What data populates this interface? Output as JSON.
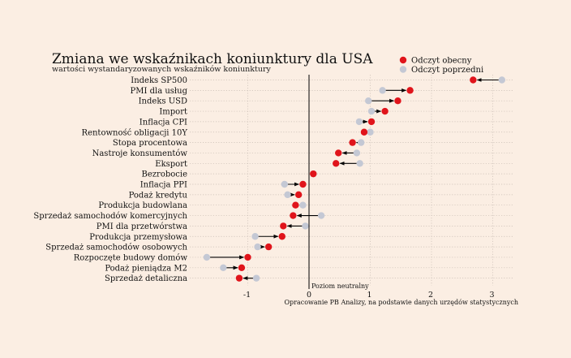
{
  "colors": {
    "background": "#fbeee3",
    "current": "#e0141b",
    "previous": "#c4c8d4",
    "arrow": "#000000",
    "grid": "#c9bdb4"
  },
  "chart_data": {
    "type": "scatter",
    "title": "Zmiana we wskaźnikach koniunktury dla USA",
    "subtitle": "wartości wystandaryzowanych wskaźników koniunktury",
    "xlim": [
      -1.75,
      3.35
    ],
    "x_ticks": [
      "-1",
      "0",
      "1",
      "2",
      "3"
    ],
    "x_tick_values": [
      -1,
      0,
      1,
      2,
      3
    ],
    "zero_label": "Poziom neutralny",
    "source": "Opracowanie PB Analizy, na podstawie danych urzędów statystycznych",
    "grid": true,
    "legend_position": "top-right",
    "series": [
      {
        "name": "Odczyt obecny",
        "color": "#e0141b"
      },
      {
        "name": "Odczyt poprzedni",
        "color": "#c4c8d4"
      }
    ],
    "categories": [
      "Indeks SP500",
      "PMI dla usług",
      "Indeks USD",
      "Import",
      "Inflacja CPI",
      "Rentowność obligacji 10Y",
      "Stopa procentowa",
      "Nastroje konsumentów",
      "Eksport",
      "Bezrobocie",
      "Inflacja PPI",
      "Podaż kredytu",
      "Produkcja budowlana",
      "Sprzedaż samochodów komercyjnych",
      "PMI dla przetwórstwa",
      "Produkcja przemysłowa",
      "Sprzedaż samochodów osobowych",
      "Rozpoczęte budowy domów",
      "Podaż pieniądza M2",
      "Sprzedaż detaliczna"
    ],
    "current": [
      2.68,
      1.65,
      1.45,
      1.24,
      1.02,
      0.9,
      0.71,
      0.48,
      0.44,
      0.07,
      -0.1,
      -0.17,
      -0.22,
      -0.26,
      -0.42,
      -0.44,
      -0.66,
      -1.0,
      -1.1,
      -1.14
    ],
    "previous": [
      3.15,
      1.2,
      0.97,
      1.02,
      0.82,
      1.0,
      0.85,
      0.78,
      0.83,
      0.07,
      -0.4,
      -0.35,
      -0.1,
      0.2,
      -0.06,
      -0.88,
      -0.84,
      -1.67,
      -1.4,
      -0.86
    ]
  }
}
